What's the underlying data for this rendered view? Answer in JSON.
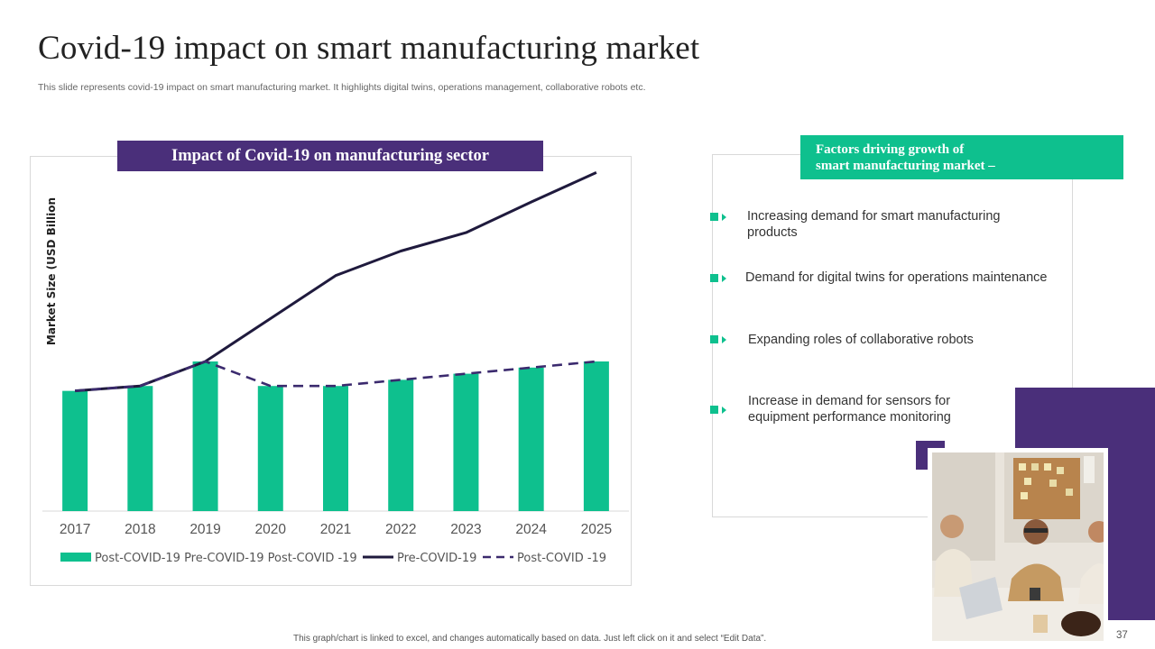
{
  "slide": {
    "title": "Covid-19 impact on smart manufacturing market",
    "subtitle": "This slide represents covid-19 impact on smart manufacturing market. It highlights digital twins, operations management, collaborative robots etc.",
    "footer": "This graph/chart is linked to excel,  and changes automatically based on data. Just left click on it and select “Edit Data”.",
    "page_number": "37"
  },
  "chart_header": "Impact of Covid-19 on manufacturing sector",
  "chart_data": {
    "type": "bar+line",
    "title": "Impact of Covid-19 on manufacturing sector",
    "xlabel": "",
    "ylabel": "Market Size (USD Billion",
    "categories": [
      "2017",
      "2018",
      "2019",
      "2020",
      "2021",
      "2022",
      "2023",
      "2024",
      "2025"
    ],
    "ylim": [
      0,
      280
    ],
    "grid": false,
    "legend_position": "bottom",
    "series": [
      {
        "name": "Post-COVID-19 Pre-COVID-19 Post-COVID -19",
        "type": "bar",
        "color": "#0ec08e",
        "values": [
          98,
          102,
          122,
          102,
          102,
          107,
          112,
          117,
          122
        ]
      },
      {
        "name": "Pre-COVID-19",
        "type": "line",
        "style": "solid",
        "color": "#1f1a3d",
        "values": [
          98,
          102,
          122,
          157,
          192,
          212,
          227,
          252,
          276
        ]
      },
      {
        "name": "Post-COVID -19",
        "type": "line",
        "style": "dashed",
        "color": "#3b2a6e",
        "values": [
          98,
          102,
          122,
          102,
          102,
          107,
          112,
          117,
          122
        ]
      }
    ]
  },
  "factors": {
    "heading_line1": "Factors driving growth of",
    "heading_line2": "smart manufacturing market –",
    "items": [
      "Increasing demand for smart manufacturing products",
      "Demand for digital twins for operations maintenance",
      "Expanding roles of collaborative robots",
      "Increase in demand for sensors for equipment performance monitoring"
    ]
  },
  "colors": {
    "accent_green": "#0ec08e",
    "accent_purple": "#4a2f7a",
    "line_dark": "#1f1a3d"
  }
}
